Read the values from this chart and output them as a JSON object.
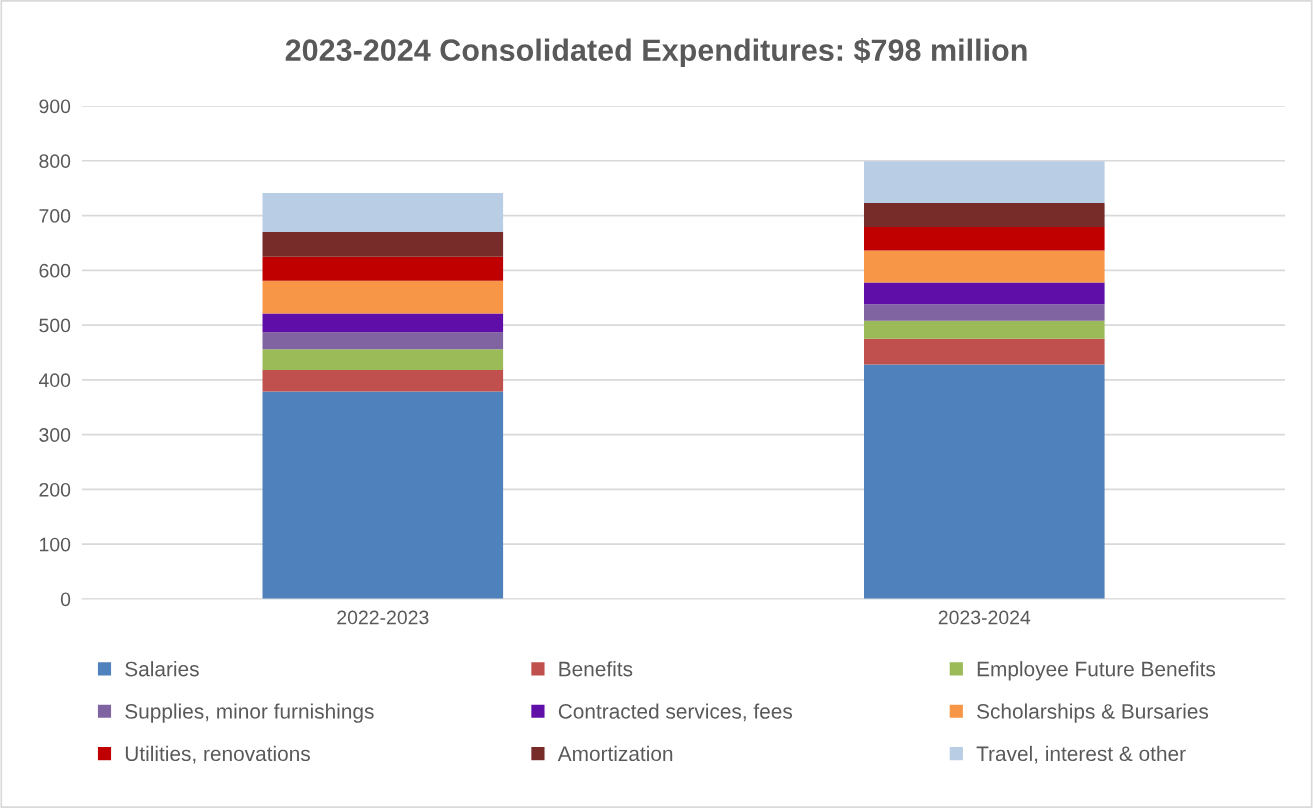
{
  "chart_data": {
    "type": "bar",
    "title": "2023-2024 Consolidated Expenditures: $798 million",
    "categories": [
      "2022-2023",
      "2023-2024"
    ],
    "stacked": true,
    "series": [
      {
        "name": "Salaries",
        "color": "#4f81bd",
        "values": [
          379,
          428
        ]
      },
      {
        "name": "Benefits",
        "color": "#c0504d",
        "values": [
          39,
          47
        ]
      },
      {
        "name": "Employee Future Benefits",
        "color": "#9bbb59",
        "values": [
          38,
          33
        ]
      },
      {
        "name": "Supplies, minor furnishings",
        "color": "#8064a2",
        "values": [
          31,
          30
        ]
      },
      {
        "name": "Contracted services, fees",
        "color": "#5f0fa8",
        "values": [
          34,
          40
        ]
      },
      {
        "name": "Scholarships & Bursaries",
        "color": "#f79646",
        "values": [
          60,
          58
        ]
      },
      {
        "name": "Utilities, renovations",
        "color": "#c00000",
        "values": [
          44,
          43
        ]
      },
      {
        "name": "Amortization",
        "color": "#772c2a",
        "values": [
          45,
          44
        ]
      },
      {
        "name": "Travel, interest & other",
        "color": "#b9cde5",
        "values": [
          71,
          76
        ]
      }
    ],
    "ylim": [
      0,
      900
    ],
    "yticks": [
      0,
      100,
      200,
      300,
      400,
      500,
      600,
      700,
      800,
      900
    ],
    "grid": "y",
    "legend": "bottom"
  }
}
